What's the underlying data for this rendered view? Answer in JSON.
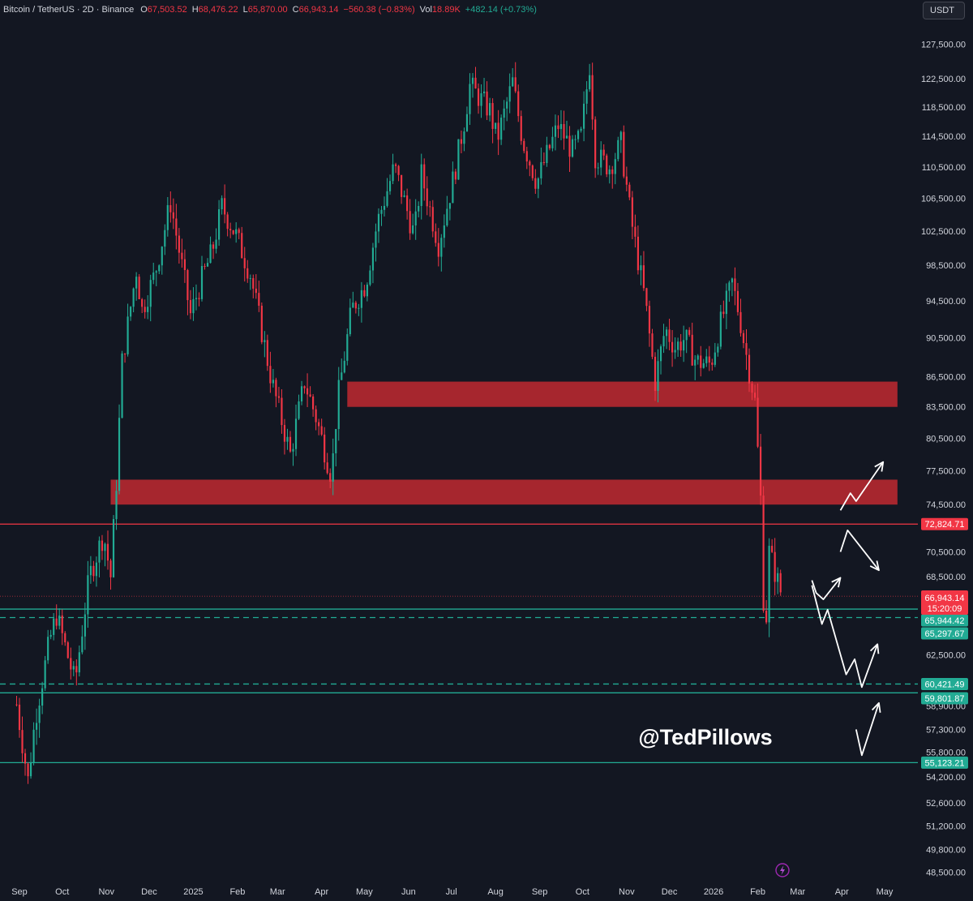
{
  "header": {
    "symbol": "Bitcoin / TetherUS · 2D · Binance",
    "open_label": "O",
    "open": "67,503.52",
    "high_label": "H",
    "high": "68,476.22",
    "low_label": "L",
    "low": "65,870.00",
    "close_label": "C",
    "close": "66,943.14",
    "change": "−560.38 (−0.83%)",
    "vol_label": "Vol",
    "vol": "18.89K",
    "vol_change": "+482.14 (+0.73%)"
  },
  "currency_button": "USDT",
  "watermark": "@TedPillows",
  "chart_data": {
    "type": "candlestick",
    "title": "Bitcoin / TetherUS · 2D · Binance",
    "y_axis": {
      "scale": "log",
      "ylim": [
        47500,
        131000
      ],
      "ticks": [
        "127,500.00",
        "122,500.00",
        "118,500.00",
        "114,500.00",
        "110,500.00",
        "106,500.00",
        "102,500.00",
        "98,500.00",
        "94,500.00",
        "90,500.00",
        "86,500.00",
        "83,500.00",
        "80,500.00",
        "77,500.00",
        "74,500.00",
        "70,500.00",
        "68,500.00",
        "65,500.00",
        "62,500.00",
        "58,900.00",
        "57,300.00",
        "55,800.00",
        "54,200.00",
        "52,600.00",
        "51,200.00",
        "49,800.00",
        "48,500.00"
      ]
    },
    "x_axis": {
      "range": [
        "2024-08-30",
        "2026-05-10"
      ],
      "ticks": [
        {
          "label": "Sep",
          "date": "2024-09-01"
        },
        {
          "label": "Oct",
          "date": "2024-10-01"
        },
        {
          "label": "Nov",
          "date": "2024-11-01"
        },
        {
          "label": "Dec",
          "date": "2024-12-01"
        },
        {
          "label": "2025",
          "date": "2025-01-01"
        },
        {
          "label": "Feb",
          "date": "2025-02-01"
        },
        {
          "label": "Mar",
          "date": "2025-03-01"
        },
        {
          "label": "Apr",
          "date": "2025-04-01"
        },
        {
          "label": "May",
          "date": "2025-05-01"
        },
        {
          "label": "Jun",
          "date": "2025-06-01"
        },
        {
          "label": "Jul",
          "date": "2025-07-01"
        },
        {
          "label": "Aug",
          "date": "2025-08-01"
        },
        {
          "label": "Sep",
          "date": "2025-09-01"
        },
        {
          "label": "Oct",
          "date": "2025-10-01"
        },
        {
          "label": "Nov",
          "date": "2025-11-01"
        },
        {
          "label": "Dec",
          "date": "2025-12-01"
        },
        {
          "label": "2026",
          "date": "2026-01-01"
        },
        {
          "label": "Feb",
          "date": "2026-02-01"
        },
        {
          "label": "Mar",
          "date": "2026-03-01"
        },
        {
          "label": "Apr",
          "date": "2026-04-01"
        },
        {
          "label": "May",
          "date": "2026-05-01"
        }
      ]
    },
    "grid": false,
    "close_path": [
      [
        "2024-08-30",
        59000
      ],
      [
        "2024-09-07",
        54000
      ],
      [
        "2024-09-12",
        58000
      ],
      [
        "2024-09-22",
        63500
      ],
      [
        "2024-09-27",
        65500
      ],
      [
        "2024-10-10",
        60500
      ],
      [
        "2024-10-20",
        68500
      ],
      [
        "2024-10-30",
        72000
      ],
      [
        "2024-11-04",
        68500
      ],
      [
        "2024-11-08",
        76500
      ],
      [
        "2024-11-12",
        88000
      ],
      [
        "2024-11-22",
        98000
      ],
      [
        "2024-11-26",
        93500
      ],
      [
        "2024-12-05",
        97500
      ],
      [
        "2024-12-16",
        106000
      ],
      [
        "2024-12-30",
        93000
      ],
      [
        "2025-01-07",
        97000
      ],
      [
        "2025-01-14",
        100000
      ],
      [
        "2025-01-21",
        105500
      ],
      [
        "2025-01-31",
        102000
      ],
      [
        "2025-02-10",
        97500
      ],
      [
        "2025-02-25",
        86000
      ],
      [
        "2025-03-10",
        79000
      ],
      [
        "2025-03-20",
        86000
      ],
      [
        "2025-03-28",
        82500
      ],
      [
        "2025-04-08",
        77000
      ],
      [
        "2025-04-12",
        84000
      ],
      [
        "2025-04-22",
        93500
      ],
      [
        "2025-05-02",
        96500
      ],
      [
        "2025-05-10",
        103500
      ],
      [
        "2025-05-22",
        110500
      ],
      [
        "2025-06-05",
        102000
      ],
      [
        "2025-06-10",
        109500
      ],
      [
        "2025-06-22",
        101000
      ],
      [
        "2025-07-03",
        109500
      ],
      [
        "2025-07-10",
        116500
      ],
      [
        "2025-07-14",
        121500
      ],
      [
        "2025-07-28",
        118000
      ],
      [
        "2025-08-02",
        114000
      ],
      [
        "2025-08-13",
        122000
      ],
      [
        "2025-08-20",
        114000
      ],
      [
        "2025-08-30",
        108500
      ],
      [
        "2025-09-05",
        111500
      ],
      [
        "2025-09-14",
        116000
      ],
      [
        "2025-09-24",
        112500
      ],
      [
        "2025-09-30",
        114500
      ],
      [
        "2025-10-06",
        124500
      ],
      [
        "2025-10-10",
        112000
      ],
      [
        "2025-10-20",
        110500
      ],
      [
        "2025-10-28",
        113500
      ],
      [
        "2025-11-04",
        104000
      ],
      [
        "2025-11-14",
        94500
      ],
      [
        "2025-11-21",
        86000
      ],
      [
        "2025-11-28",
        91500
      ],
      [
        "2025-12-05",
        89500
      ],
      [
        "2025-12-12",
        90500
      ],
      [
        "2025-12-20",
        88000
      ],
      [
        "2025-12-30",
        87800
      ],
      [
        "2026-01-05",
        91500
      ],
      [
        "2026-01-14",
        96500
      ],
      [
        "2026-01-19",
        93000
      ],
      [
        "2026-01-23",
        89500
      ],
      [
        "2026-01-30",
        84000
      ],
      [
        "2026-02-03",
        75000
      ],
      [
        "2026-02-06",
        63000
      ],
      [
        "2026-02-09",
        70500
      ],
      [
        "2026-02-14",
        68500
      ],
      [
        "2026-02-18",
        66943
      ]
    ],
    "zones": [
      {
        "low": 83500,
        "high": 86000,
        "start": "2025-04-19",
        "end": "2026-05-10",
        "color": "#b2282f"
      },
      {
        "low": 74500,
        "high": 76700,
        "start": "2024-11-04",
        "end": "2026-05-10",
        "color": "#b2282f"
      }
    ],
    "levels": [
      {
        "price": 72824.71,
        "label": "72,824.71",
        "style": "solid",
        "color": "#f23645"
      },
      {
        "price": 65944.42,
        "label": "65,944.42",
        "style": "solid",
        "color": "#22ab94"
      },
      {
        "price": 65297.67,
        "label": "65,297.67",
        "style": "dashed",
        "color": "#22ab94"
      },
      {
        "price": 60421.49,
        "label": "60,421.49",
        "style": "dashed",
        "color": "#22ab94"
      },
      {
        "price": 59801.87,
        "label": "59,801.87",
        "style": "solid",
        "color": "#22ab94"
      },
      {
        "price": 55123.21,
        "label": "55,123.21",
        "style": "solid",
        "color": "#22ab94"
      }
    ],
    "last_price": {
      "price": 66943.14,
      "label": "66,943.14",
      "countdown": "15:20:09",
      "color": "#f23645"
    },
    "projection_arrows": [
      {
        "name": "projection-bullish-breakout",
        "points": [
          [
            "2026-03-31",
            74000
          ],
          [
            "2026-04-07",
            75500
          ],
          [
            "2026-04-11",
            74800
          ],
          [
            "2026-04-30",
            78300
          ]
        ]
      },
      {
        "name": "projection-rejection",
        "points": [
          [
            "2026-03-31",
            70500
          ],
          [
            "2026-04-05",
            72300
          ],
          [
            "2026-04-27",
            69000
          ]
        ]
      },
      {
        "name": "projection-small-bounce",
        "points": [
          [
            "2026-03-11",
            68200
          ],
          [
            "2026-03-14",
            67200
          ],
          [
            "2026-03-19",
            66700
          ],
          [
            "2026-03-31",
            68400
          ]
        ]
      },
      {
        "name": "projection-drop-bounce",
        "points": [
          [
            "2026-03-11",
            67800
          ],
          [
            "2026-03-18",
            64800
          ],
          [
            "2026-03-22",
            65900
          ],
          [
            "2026-04-04",
            61100
          ],
          [
            "2026-04-10",
            62200
          ],
          [
            "2026-04-15",
            60200
          ],
          [
            "2026-04-26",
            63300
          ]
        ]
      },
      {
        "name": "projection-deep-bounce",
        "points": [
          [
            "2026-04-11",
            57300
          ],
          [
            "2026-04-15",
            55600
          ],
          [
            "2026-04-27",
            59100
          ]
        ]
      }
    ],
    "colors": {
      "up": "#22ab94",
      "down": "#f23645",
      "background": "#131722",
      "axis_text": "#d1d4dc"
    }
  }
}
